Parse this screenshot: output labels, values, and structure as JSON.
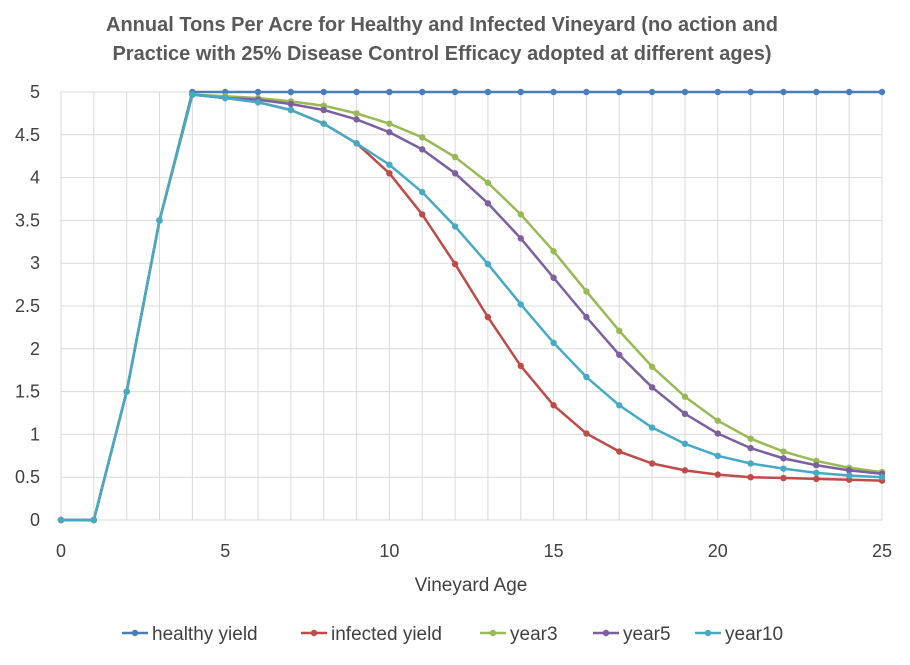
{
  "chart_data": {
    "type": "line",
    "title_lines": [
      "Annual Tons Per Acre for Healthy and Infected Vineyard (no action and",
      "Practice with 25% Disease Control Efficacy adopted at different ages)"
    ],
    "xlabel": "Vineyard Age",
    "ylabel": "",
    "xlim": [
      0,
      25
    ],
    "ylim": [
      0,
      5
    ],
    "x_ticks": [
      0,
      5,
      10,
      15,
      20,
      25
    ],
    "y_ticks": [
      0,
      0.5,
      1,
      1.5,
      2,
      2.5,
      3,
      3.5,
      4,
      4.5,
      5
    ],
    "y_tick_labels": [
      "0",
      "0.5",
      "1",
      "1.5",
      "2",
      "2.5",
      "3",
      "3.5",
      "4",
      "4.5",
      "5"
    ],
    "grid": "vertical and horizontal",
    "legend_position": "bottom",
    "x": [
      0,
      1,
      2,
      3,
      4,
      5,
      6,
      7,
      8,
      9,
      10,
      11,
      12,
      13,
      14,
      15,
      16,
      17,
      18,
      19,
      20,
      21,
      22,
      23,
      24,
      25
    ],
    "series": [
      {
        "name": "healthy yield",
        "color": "#4a7ebb",
        "values": [
          0,
          0,
          1.5,
          3.5,
          5,
          5,
          5,
          5,
          5,
          5,
          5,
          5,
          5,
          5,
          5,
          5,
          5,
          5,
          5,
          5,
          5,
          5,
          5,
          5,
          5,
          5
        ]
      },
      {
        "name": "infected yield",
        "color": "#be4b48",
        "values": [
          0,
          0,
          1.5,
          3.5,
          4.97,
          4.93,
          4.88,
          4.79,
          4.63,
          4.4,
          4.05,
          3.57,
          2.99,
          2.37,
          1.8,
          1.34,
          1.01,
          0.8,
          0.66,
          0.58,
          0.53,
          0.5,
          0.49,
          0.48,
          0.47,
          0.46
        ]
      },
      {
        "name": "year3",
        "color": "#98b954",
        "values": [
          0,
          0,
          1.5,
          3.5,
          4.97,
          4.95,
          4.93,
          4.89,
          4.84,
          4.75,
          4.63,
          4.47,
          4.24,
          3.94,
          3.57,
          3.14,
          2.67,
          2.21,
          1.79,
          1.44,
          1.16,
          0.95,
          0.8,
          0.69,
          0.61,
          0.56
        ]
      },
      {
        "name": "year5",
        "color": "#7d5fa0",
        "values": [
          0,
          0,
          1.5,
          3.5,
          4.97,
          4.93,
          4.91,
          4.86,
          4.79,
          4.68,
          4.53,
          4.33,
          4.05,
          3.7,
          3.29,
          2.83,
          2.37,
          1.93,
          1.55,
          1.24,
          1.01,
          0.84,
          0.72,
          0.64,
          0.58,
          0.54
        ]
      },
      {
        "name": "year10",
        "color": "#46aac5",
        "values": [
          0,
          0,
          1.5,
          3.5,
          4.97,
          4.93,
          4.88,
          4.79,
          4.63,
          4.4,
          4.15,
          3.83,
          3.43,
          2.99,
          2.52,
          2.07,
          1.67,
          1.34,
          1.08,
          0.89,
          0.75,
          0.66,
          0.6,
          0.55,
          0.52,
          0.5
        ]
      }
    ]
  }
}
